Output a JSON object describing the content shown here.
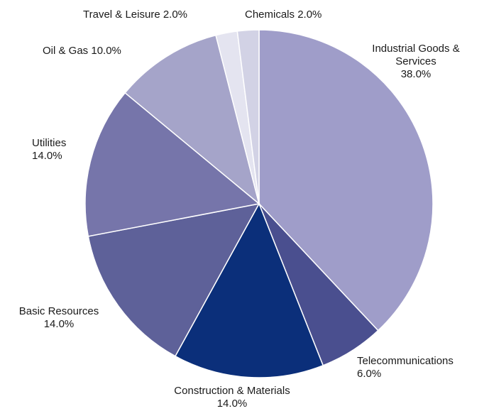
{
  "chart_data": {
    "type": "pie",
    "categories": [
      "Industrial Goods & Services",
      "Telecommunications",
      "Construction & Materials",
      "Basic Resources",
      "Utilities",
      "Oil & Gas",
      "Travel & Leisure",
      "Chemicals"
    ],
    "values": [
      38,
      6,
      14,
      14,
      14,
      10,
      2,
      2
    ],
    "value_labels": [
      "38.0%",
      "6.0%",
      "14.0%",
      "14.0%",
      "14.0%",
      "10.0%",
      "2.0%",
      "2.0%"
    ],
    "colors": [
      "#9f9dc9",
      "#4a4f8f",
      "#0b2f7a",
      "#5e6199",
      "#7675aa",
      "#a5a4c9",
      "#e4e4f0",
      "#d2d2e5"
    ]
  }
}
